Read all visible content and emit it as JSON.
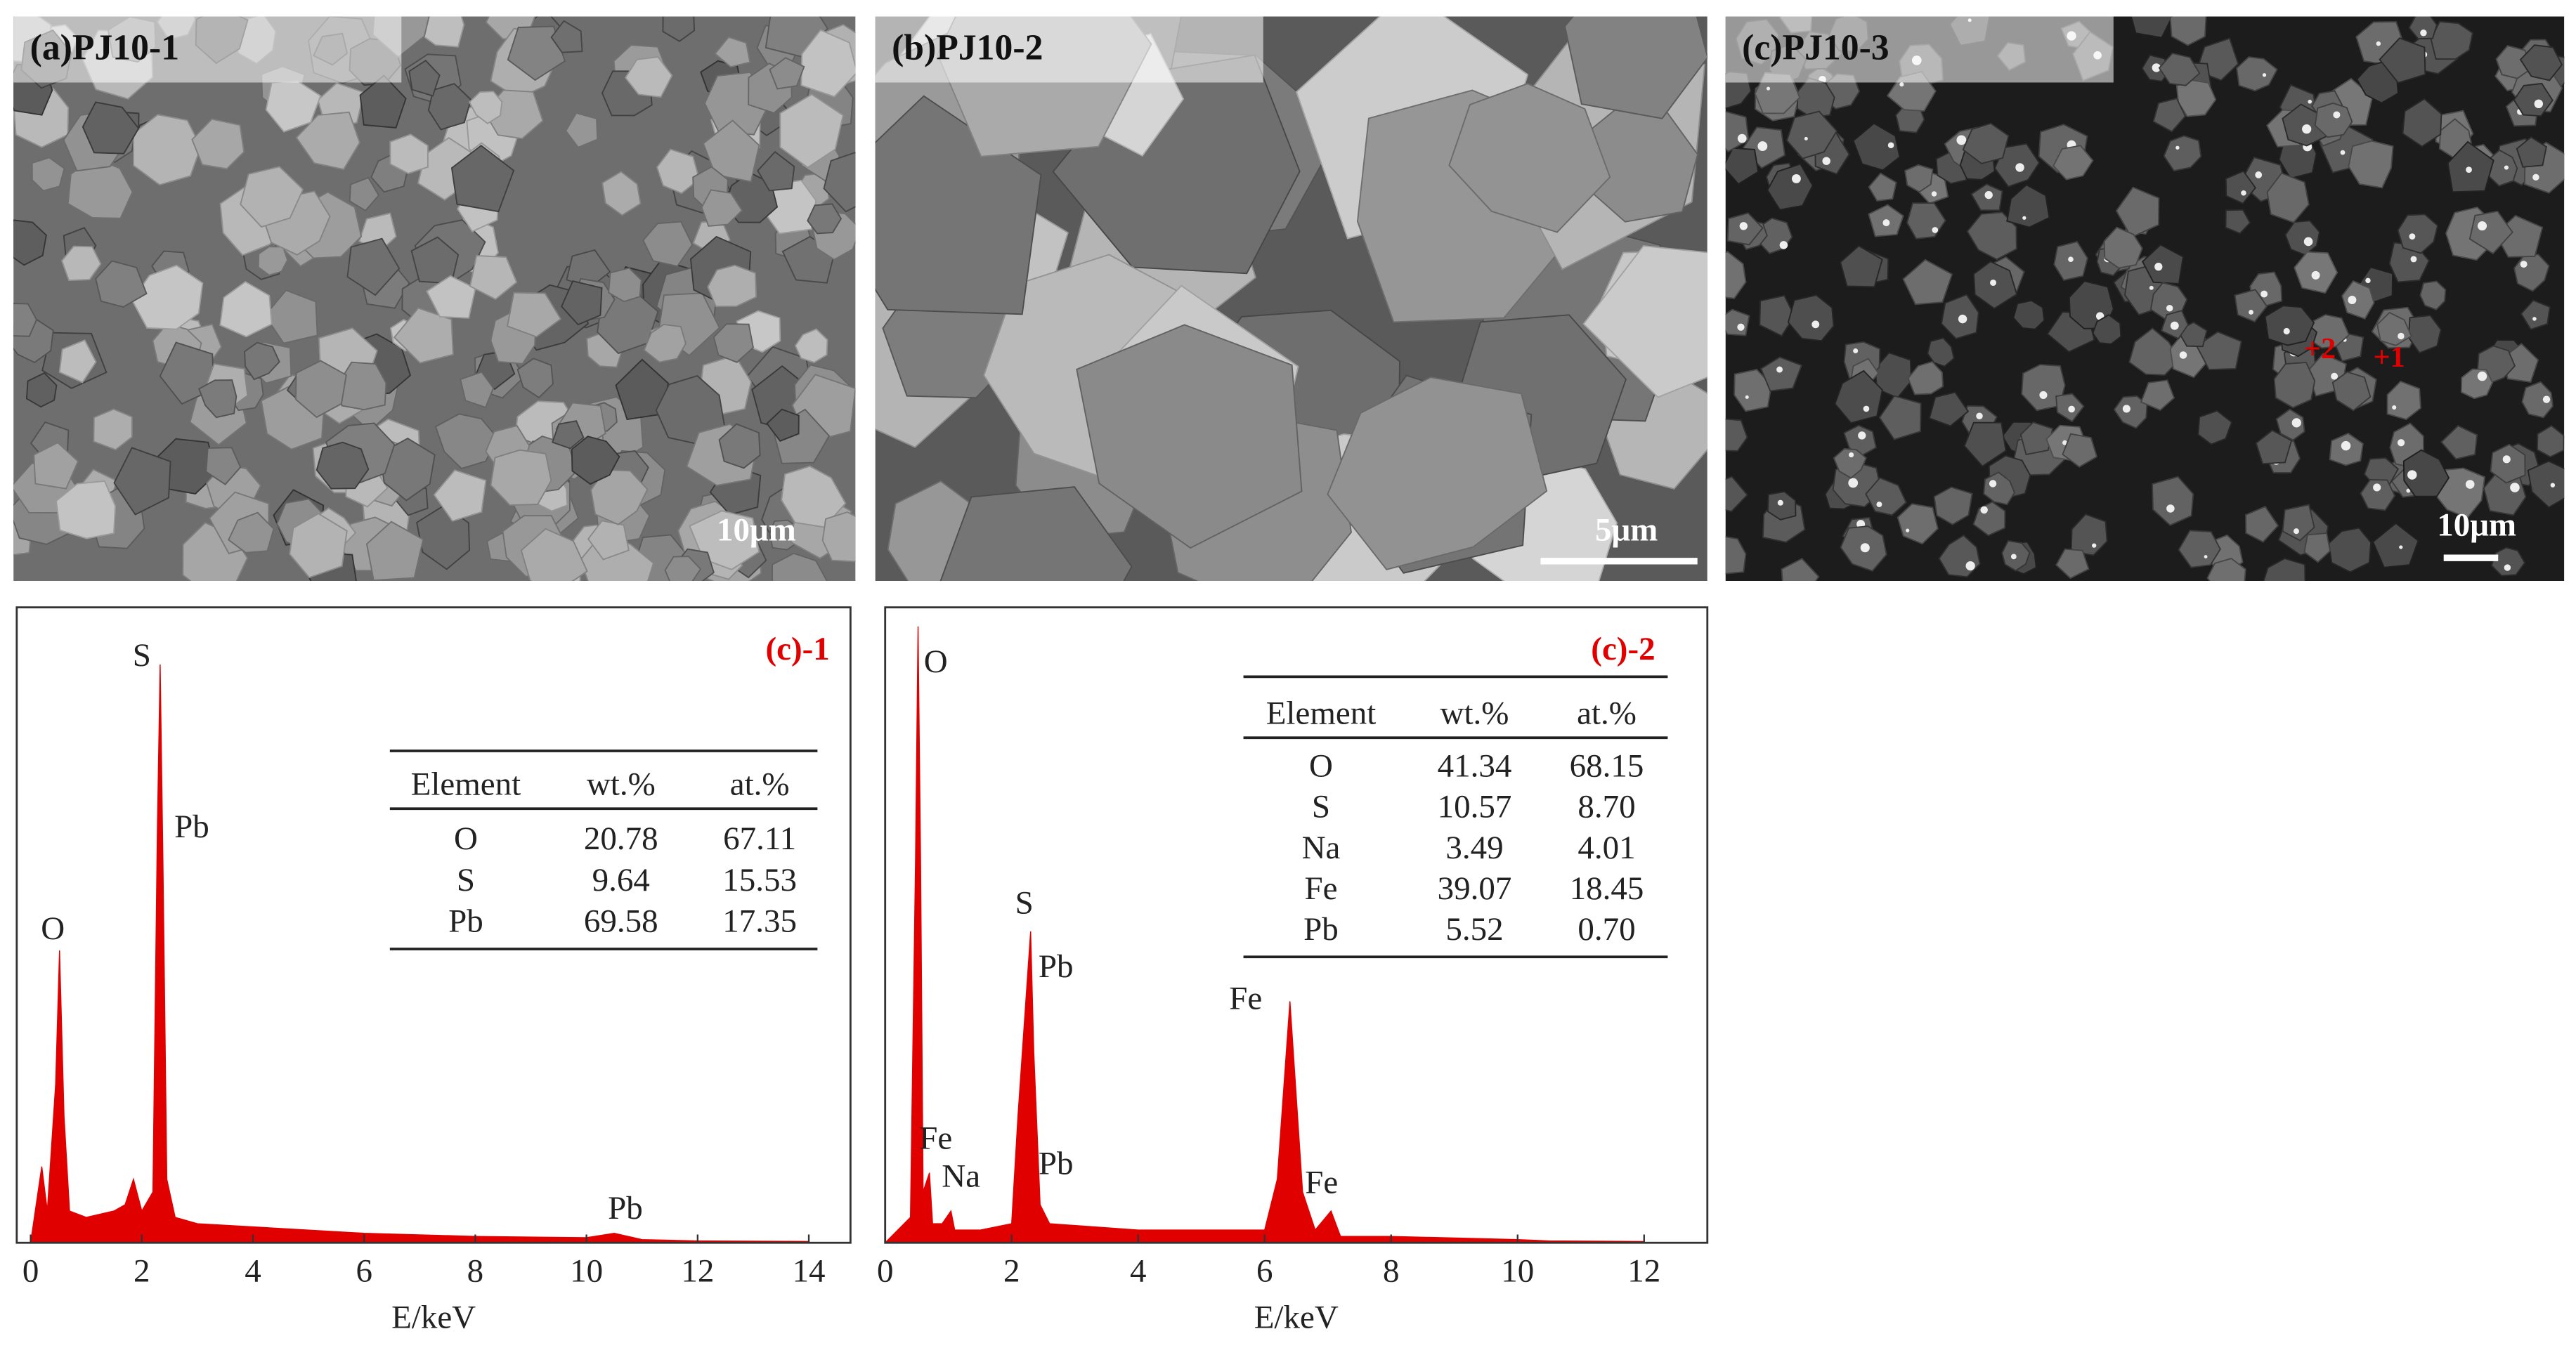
{
  "panels": [
    {
      "label": "(a)PJ10-1",
      "scale_bar": "10μm"
    },
    {
      "label": "(b)PJ10-2",
      "scale_bar": "5μm"
    },
    {
      "label": "(c)PJ10-3",
      "scale_bar": "10μm",
      "markers": [
        "+2",
        "+1"
      ]
    }
  ],
  "chart_data": [
    {
      "type": "area",
      "title": "(c)-1",
      "xlabel": "E/keV",
      "color": "#e00000",
      "x": [
        0,
        0.1,
        0.2,
        0.3,
        0.45,
        0.52,
        0.6,
        0.7,
        1.0,
        1.5,
        1.7,
        1.85,
        2.0,
        2.2,
        2.28,
        2.33,
        2.38,
        2.45,
        2.6,
        3,
        4,
        6,
        8,
        10,
        10.5,
        11,
        12,
        14
      ],
      "values": [
        0,
        6,
        12,
        5,
        25,
        46,
        20,
        5,
        4,
        5,
        6,
        10,
        5,
        8,
        65,
        91,
        60,
        10,
        4,
        3,
        2.5,
        1.5,
        1,
        0.8,
        1.5,
        0.5,
        0.3,
        0.2
      ],
      "xlim": [
        -0.25,
        14.75
      ],
      "ylim": [
        0,
        100
      ],
      "xticks": [
        0,
        2,
        4,
        6,
        8,
        10,
        12,
        14
      ],
      "annotations": [
        {
          "text": "S",
          "x": 2.0,
          "y": 92
        },
        {
          "text": "Pb",
          "x": 2.9,
          "y": 65
        },
        {
          "text": "O",
          "x": 0.4,
          "y": 49
        },
        {
          "text": "Pb",
          "x": 10.7,
          "y": 5
        }
      ],
      "table": {
        "columns": [
          "Element",
          "wt.%",
          "at.%"
        ],
        "rows": [
          [
            "O",
            "20.78",
            "67.11"
          ],
          [
            "S",
            "9.64",
            "15.53"
          ],
          [
            "Pb",
            "69.58",
            "17.35"
          ]
        ]
      }
    },
    {
      "type": "area",
      "title": "(c)-2",
      "xlabel": "E/keV",
      "color": "#e00000",
      "x": [
        0,
        0.2,
        0.4,
        0.48,
        0.52,
        0.56,
        0.6,
        0.7,
        0.75,
        0.9,
        1.04,
        1.1,
        1.5,
        2.0,
        2.1,
        2.3,
        2.35,
        2.45,
        2.6,
        4,
        6,
        6.2,
        6.4,
        6.6,
        6.8,
        7.05,
        7.2,
        8,
        10,
        10.5,
        12
      ],
      "values": [
        0,
        2,
        4,
        60,
        97,
        60,
        8,
        11,
        3,
        3,
        5,
        2,
        2,
        3,
        20,
        49,
        30,
        6,
        3,
        2,
        2,
        10,
        38,
        8,
        2,
        5,
        1,
        1,
        0.5,
        0.3,
        0.2
      ],
      "xlim": [
        0,
        13
      ],
      "ylim": [
        0,
        100
      ],
      "xticks": [
        0,
        2,
        4,
        6,
        8,
        10,
        12
      ],
      "annotations": [
        {
          "text": "O",
          "x": 0.8,
          "y": 91
        },
        {
          "text": "S",
          "x": 2.2,
          "y": 53
        },
        {
          "text": "Pb",
          "x": 2.7,
          "y": 43
        },
        {
          "text": "Fe",
          "x": 5.7,
          "y": 38
        },
        {
          "text": "Fe",
          "x": 0.8,
          "y": 16
        },
        {
          "text": "Na",
          "x": 1.2,
          "y": 10
        },
        {
          "text": "Pb",
          "x": 2.7,
          "y": 12
        },
        {
          "text": "Fe",
          "x": 6.9,
          "y": 9
        }
      ],
      "table": {
        "columns": [
          "Element",
          "wt.%",
          "at.%"
        ],
        "rows": [
          [
            "O",
            "41.34",
            "68.15"
          ],
          [
            "S",
            "10.57",
            "8.70"
          ],
          [
            "Na",
            "3.49",
            "4.01"
          ],
          [
            "Fe",
            "39.07",
            "18.45"
          ],
          [
            "Pb",
            "5.52",
            "0.70"
          ]
        ]
      }
    }
  ]
}
